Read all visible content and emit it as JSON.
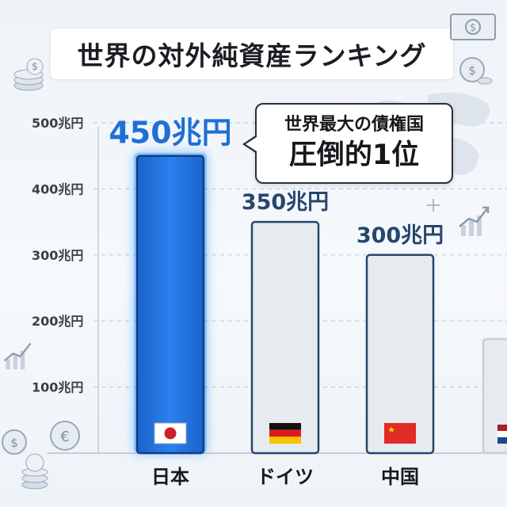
{
  "title": "世界の対外純資産ランキング",
  "callout": {
    "line1": "世界最大の債権国",
    "line2": "圧倒的1位"
  },
  "chart_data": {
    "type": "bar",
    "title": "世界の対外純資産ランキング",
    "unit": "兆円",
    "categories": [
      "日本",
      "ドイツ",
      "中国"
    ],
    "values": [
      450,
      350,
      300
    ],
    "value_labels": [
      "450兆円",
      "350兆円",
      "300兆円"
    ],
    "flags": [
      "japan-flag",
      "germany-flag",
      "china-flag"
    ],
    "yticks": [
      {
        "value": 100,
        "label": "100兆円"
      },
      {
        "value": 200,
        "label": "200兆円"
      },
      {
        "value": 300,
        "label": "300兆円"
      },
      {
        "value": 400,
        "label": "400兆円"
      },
      {
        "value": 500,
        "label": "500兆円"
      }
    ],
    "ylim": [
      0,
      500
    ],
    "grid": true,
    "highlight_color": "#1f6fd6",
    "bar_color": "#e7ebf0",
    "bar_border": "#27456e"
  }
}
